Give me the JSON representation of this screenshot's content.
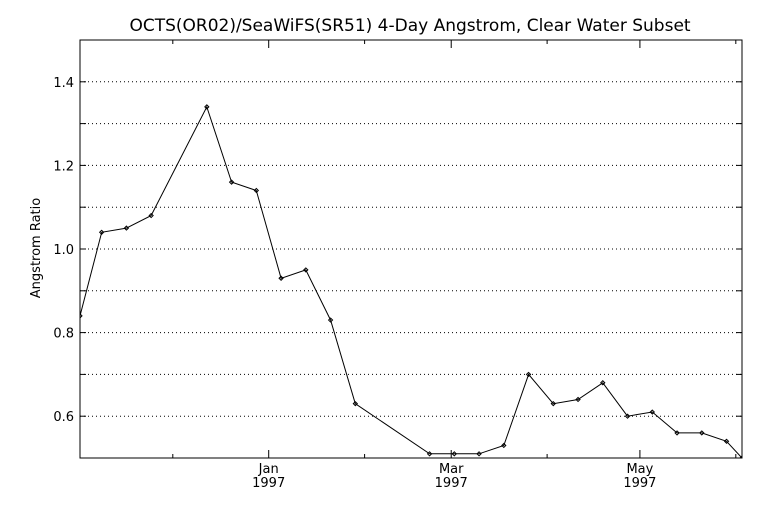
{
  "chart_data": {
    "type": "line",
    "title": "OCTS(OR02)/SeaWiFS(SR51) 4-Day Angstrom, Clear Water Subset",
    "xlabel": "",
    "ylabel": "Angstrom Ratio",
    "xlim": [
      "1996-11-01",
      "1997-06-03"
    ],
    "ylim": [
      0.5,
      1.5
    ],
    "x_ticks": [
      {
        "date": "1997-01-01",
        "label": "Jan",
        "year": "1997"
      },
      {
        "date": "1997-03-01",
        "label": "Mar",
        "year": "1997"
      },
      {
        "date": "1997-05-01",
        "label": "May",
        "year": "1997"
      }
    ],
    "y_ticks": [
      {
        "value": 0.6,
        "label": "0.6"
      },
      {
        "value": 0.8,
        "label": "0.8"
      },
      {
        "value": 1.0,
        "label": "1.0"
      },
      {
        "value": 1.2,
        "label": "1.2"
      },
      {
        "value": 1.4,
        "label": "1.4"
      }
    ],
    "grid": true,
    "grid_style": "dotted horizontal",
    "line_color": "#000000",
    "series": [
      {
        "points": [
          {
            "x": "1996-11-01",
            "y": 0.84
          },
          {
            "x": "1996-11-08",
            "y": 1.04
          },
          {
            "x": "1996-11-16",
            "y": 1.05
          },
          {
            "x": "1996-11-24",
            "y": 1.08
          },
          {
            "x": "1996-12-12",
            "y": 1.34
          },
          {
            "x": "1996-12-20",
            "y": 1.16
          },
          {
            "x": "1996-12-28",
            "y": 1.14
          },
          {
            "x": "1997-01-05",
            "y": 0.93
          },
          {
            "x": "1997-01-13",
            "y": 0.95
          },
          {
            "x": "1997-01-21",
            "y": 0.83
          },
          {
            "x": "1997-01-29",
            "y": 0.63
          },
          {
            "x": "1997-02-22",
            "y": 0.51
          },
          {
            "x": "1997-03-02",
            "y": 0.51
          },
          {
            "x": "1997-03-10",
            "y": 0.51
          },
          {
            "x": "1997-03-18",
            "y": 0.53
          },
          {
            "x": "1997-03-26",
            "y": 0.7
          },
          {
            "x": "1997-04-03",
            "y": 0.63
          },
          {
            "x": "1997-04-11",
            "y": 0.64
          },
          {
            "x": "1997-04-19",
            "y": 0.68
          },
          {
            "x": "1997-04-27",
            "y": 0.6
          },
          {
            "x": "1997-05-05",
            "y": 0.61
          },
          {
            "x": "1997-05-13",
            "y": 0.56
          },
          {
            "x": "1997-05-21",
            "y": 0.56
          },
          {
            "x": "1997-05-29",
            "y": 0.54
          },
          {
            "x": "1997-06-03",
            "y": 0.5
          }
        ]
      }
    ]
  }
}
